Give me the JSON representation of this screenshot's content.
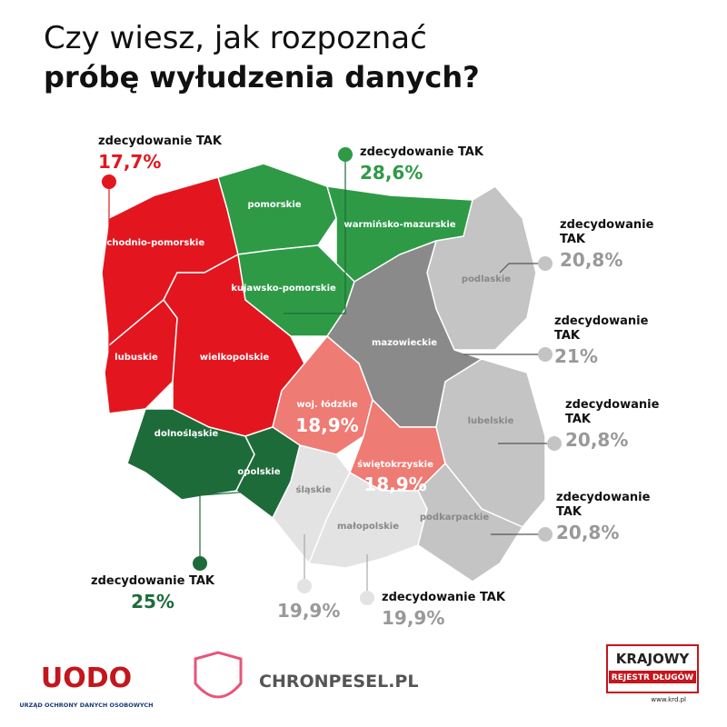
{
  "title": {
    "line1": "Czy wiesz, jak rozpoznać",
    "line2": "próbę wyłudzenia danych?"
  },
  "regions": [
    {
      "label": "zachodnio-pomorskie"
    },
    {
      "label": "lubuskie"
    },
    {
      "label": "wielkopolskie"
    },
    {
      "label": "pomorskie"
    },
    {
      "label": "warmińsko-mazurskie"
    },
    {
      "label": "kujawsko-pomorskie"
    },
    {
      "label": "podlaskie"
    },
    {
      "label": "mazowieckie"
    },
    {
      "label": "woj. łódzkie",
      "value": "18,9%"
    },
    {
      "label": "świętokrzyskie",
      "value": "18,9%"
    },
    {
      "label": "lubelskie"
    },
    {
      "label": "dolnośląskie"
    },
    {
      "label": "opolskie"
    },
    {
      "label": "śląskie"
    },
    {
      "label": "małopolskie"
    },
    {
      "label": "podkarpackie"
    }
  ],
  "callouts": [
    {
      "label": "zdecydowanie TAK",
      "value": "17,7%"
    },
    {
      "label": "zdecydowanie TAK",
      "value": "28,6%"
    },
    {
      "label": "zdecydowanie TAK",
      "value": "20,8%"
    },
    {
      "label": "zdecydowanie TAK",
      "value": "21%"
    },
    {
      "label": "zdecydowanie TAK",
      "value": "20,8%"
    },
    {
      "label": "zdecydowanie TAK",
      "value": "20,8%"
    },
    {
      "label": "zdecydowanie TAK",
      "value": "25%"
    },
    {
      "label": "zdecydowanie TAK",
      "value": "19,9%"
    },
    {
      "label": "zdecydowanie TAK",
      "value": "19,9%"
    }
  ],
  "logos": {
    "uodo": "UODO",
    "uodo_caption": "URZĄD OCHRONY DANYCH OSOBOWYCH",
    "chronpesel": "CHRONPESEL.PL",
    "krd_line1": "KRAJOWY",
    "krd_line2": "REJESTR DŁUGÓW",
    "krd_url": "www.krd.pl"
  }
}
